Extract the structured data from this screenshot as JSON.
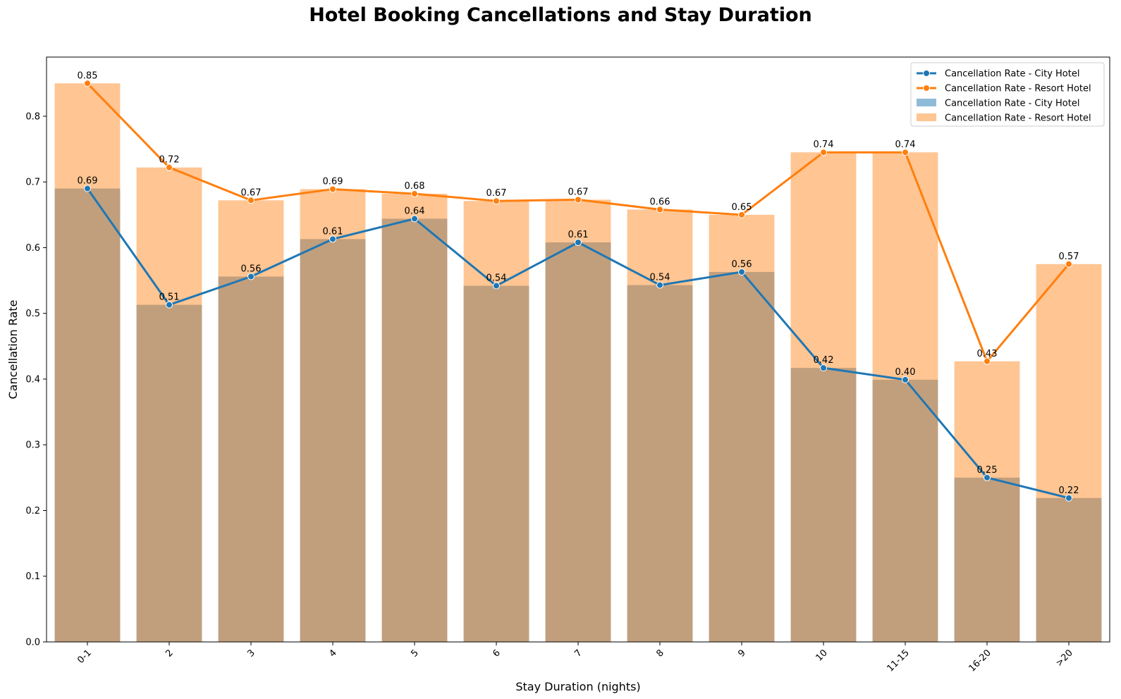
{
  "chart_data": {
    "type": "bar",
    "title": "Hotel Booking Cancellations and Stay Duration",
    "xlabel": "Stay Duration (nights)",
    "ylabel": "Cancellation Rate",
    "categories": [
      "0-1",
      "2",
      "3",
      "4",
      "5",
      "6",
      "7",
      "8",
      "9",
      "10",
      "11-15",
      "16-20",
      ">20"
    ],
    "ylim": [
      0,
      0.89
    ],
    "yticks": [
      0.0,
      0.1,
      0.2,
      0.3,
      0.4,
      0.5,
      0.6,
      0.7,
      0.8
    ],
    "grid": false,
    "legend_position": "top-right",
    "series": [
      {
        "name": "Cancellation Rate - City Hotel",
        "kind": "line",
        "color": "#1f77b4",
        "values": [
          0.69,
          0.513,
          0.556,
          0.613,
          0.644,
          0.542,
          0.608,
          0.543,
          0.563,
          0.417,
          0.399,
          0.25,
          0.219
        ],
        "labels": [
          "0.69",
          "0.51",
          "0.56",
          "0.61",
          "0.64",
          "0.54",
          "0.61",
          "0.54",
          "0.56",
          "0.42",
          "0.40",
          "0.25",
          "0.22"
        ]
      },
      {
        "name": "Cancellation Rate - Resort Hotel",
        "kind": "line",
        "color": "#ff7f0e",
        "values": [
          0.85,
          0.722,
          0.672,
          0.689,
          0.682,
          0.671,
          0.673,
          0.658,
          0.65,
          0.745,
          0.745,
          0.427,
          0.575
        ],
        "labels": [
          "0.85",
          "0.72",
          "0.67",
          "0.69",
          "0.68",
          "0.67",
          "0.67",
          "0.66",
          "0.65",
          "0.74",
          "0.74",
          "0.43",
          "0.57"
        ]
      },
      {
        "name": "Cancellation Rate - City Hotel",
        "kind": "bar",
        "color": "#1f77b4",
        "values": [
          0.69,
          0.513,
          0.556,
          0.613,
          0.644,
          0.542,
          0.608,
          0.543,
          0.563,
          0.417,
          0.399,
          0.25,
          0.219
        ]
      },
      {
        "name": "Cancellation Rate - Resort Hotel",
        "kind": "bar",
        "color": "#ff7f0e",
        "values": [
          0.85,
          0.722,
          0.672,
          0.689,
          0.682,
          0.671,
          0.673,
          0.658,
          0.65,
          0.745,
          0.745,
          0.427,
          0.575
        ]
      }
    ]
  }
}
